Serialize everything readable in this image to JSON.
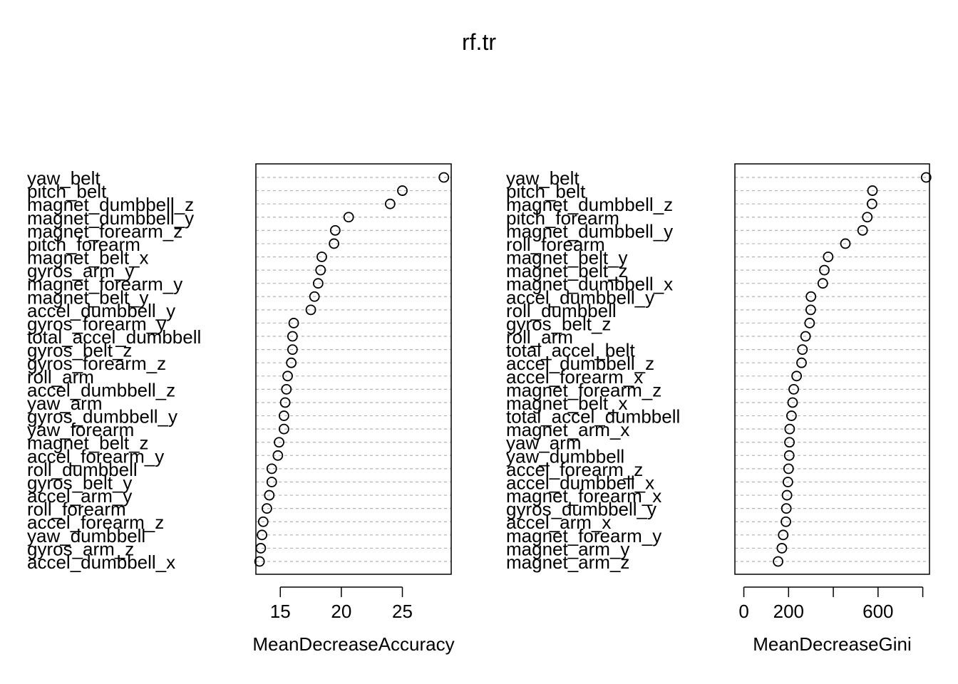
{
  "title": "rf.tr",
  "chart_data": [
    {
      "type": "scatter",
      "subtype": "dotchart",
      "xlabel": "MeanDecreaseAccuracy",
      "ylabel": "",
      "xlim": [
        13.0,
        29.0
      ],
      "xticks": [
        15,
        20,
        25
      ],
      "grid": "dotted horizontal",
      "categories": [
        "yaw_belt",
        "pitch_belt",
        "magnet_dumbbell_z",
        "magnet_dumbbell_y",
        "magnet_forearm_z",
        "pitch_forearm",
        "magnet_belt_x",
        "gyros_arm_y",
        "magnet_forearm_y",
        "magnet_belt_y",
        "accel_dumbbell_y",
        "gyros_forearm_y",
        "total_accel_dumbbell",
        "gyros_belt_z",
        "gyros_forearm_z",
        "roll_arm",
        "accel_dumbbell_z",
        "yaw_arm",
        "gyros_dumbbell_y",
        "yaw_forearm",
        "magnet_belt_z",
        "accel_forearm_y",
        "roll_dumbbell",
        "gyros_belt_y",
        "accel_arm_y",
        "roll_forearm",
        "accel_forearm_z",
        "yaw_dumbbell",
        "gyros_arm_z",
        "accel_dumbbell_x"
      ],
      "values": [
        28.4,
        25.0,
        24.0,
        20.6,
        19.5,
        19.4,
        18.4,
        18.3,
        18.1,
        17.8,
        17.5,
        16.1,
        16.0,
        16.0,
        15.9,
        15.6,
        15.5,
        15.4,
        15.3,
        15.3,
        14.9,
        14.8,
        14.3,
        14.3,
        14.1,
        13.9,
        13.6,
        13.5,
        13.4,
        13.3
      ]
    },
    {
      "type": "scatter",
      "subtype": "dotchart",
      "xlabel": "MeanDecreaseGini",
      "ylabel": "",
      "xlim": [
        -40,
        830
      ],
      "xticks": [
        0,
        200,
        600
      ],
      "xtick_marks": [
        0,
        200,
        400,
        600,
        800
      ],
      "grid": "dotted horizontal",
      "categories": [
        "yaw_belt",
        "pitch_belt",
        "magnet_dumbbell_z",
        "pitch_forearm",
        "magnet_dumbbell_y",
        "roll_forearm",
        "magnet_belt_y",
        "magnet_belt_z",
        "magnet_dumbbell_x",
        "accel_dumbbell_y",
        "roll_dumbbell",
        "gyros_belt_z",
        "roll_arm",
        "total_accel_belt",
        "accel_dumbbell_z",
        "accel_forearm_x",
        "magnet_forearm_z",
        "magnet_belt_x",
        "total_accel_dumbbell",
        "magnet_arm_x",
        "yaw_arm",
        "yaw_dumbbell",
        "accel_forearm_z",
        "accel_dumbbell_x",
        "magnet_forearm_x",
        "gyros_dumbbell_y",
        "accel_arm_x",
        "magnet_forearm_y",
        "magnet_arm_y",
        "magnet_arm_z"
      ],
      "values": [
        815,
        575,
        573,
        552,
        531,
        454,
        377,
        360,
        353,
        300,
        299,
        294,
        276,
        262,
        258,
        236,
        223,
        218,
        213,
        205,
        204,
        203,
        200,
        197,
        193,
        190,
        188,
        176,
        170,
        153
      ]
    }
  ]
}
